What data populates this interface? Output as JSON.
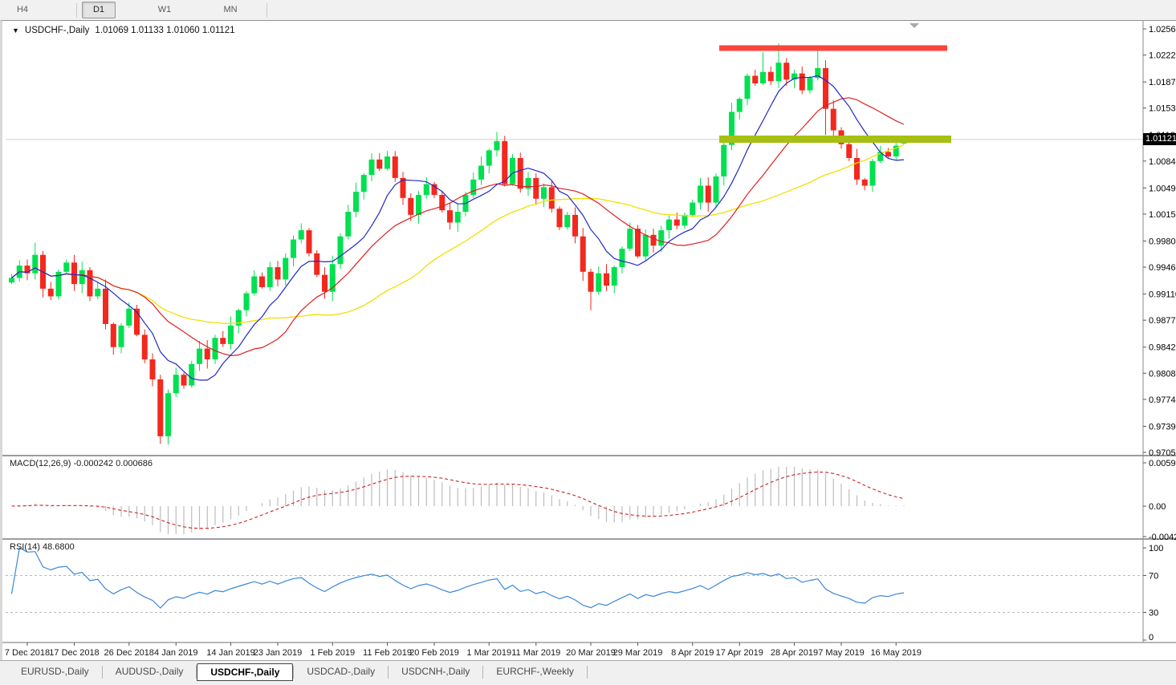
{
  "toolbar": {
    "timeframes": [
      {
        "label": "H4",
        "active": false
      },
      {
        "label": "D1",
        "active": true
      },
      {
        "label": "W1",
        "active": false
      },
      {
        "label": "MN",
        "active": false
      }
    ]
  },
  "chart": {
    "title": {
      "dropdown_icon": "▼",
      "symbol": "USDCHF-,Daily",
      "ohlc": "1.01069 1.01133 1.01060 1.01121"
    },
    "scroll_marker_icon": "▼",
    "price_axis": {
      "labels": [
        "1.02560",
        "1.02220",
        "1.01870",
        "1.01530",
        "1.01180",
        "1.00840",
        "1.00490",
        "1.00150",
        "0.99800",
        "0.99460",
        "0.99110",
        "0.98770",
        "0.98420",
        "0.98080",
        "0.97740",
        "0.97390",
        "0.97050"
      ],
      "current_price": "1.01121"
    },
    "date_axis": {
      "labels": [
        "7 Dec 2018",
        "17 Dec 2018",
        "26 Dec 2018",
        "4 Jan 2019",
        "14 Jan 2019",
        "23 Jan 2019",
        "1 Feb 2019",
        "11 Feb 2019",
        "20 Feb 2019",
        "1 Mar 2019",
        "11 Mar 2019",
        "20 Mar 2019",
        "29 Mar 2019",
        "8 Apr 2019",
        "17 Apr 2019",
        "28 Apr 2019",
        "7 May 2019",
        "16 May 2019"
      ],
      "tick_candle_indices": [
        2,
        8,
        15,
        21,
        28,
        34,
        41,
        48,
        54,
        61,
        67,
        74,
        80,
        87,
        93,
        100,
        106,
        113
      ]
    },
    "macd_panel": {
      "label": "MACD(12,26,9) -0.000242 0.000686",
      "axis_labels": [
        {
          "text": "0.00597",
          "value": 0.00597
        },
        {
          "text": "0.00",
          "value": 0
        },
        {
          "text": "-0.004243",
          "value": -0.004243
        }
      ]
    },
    "rsi_panel": {
      "label": "RSI(14) 48.6800",
      "axis_labels": [
        {
          "text": "100",
          "value": 100
        },
        {
          "text": "70",
          "value": 70
        },
        {
          "text": "30",
          "value": 30
        },
        {
          "text": "0",
          "value": 0
        }
      ],
      "levels": [
        70,
        30
      ]
    }
  },
  "tabs": [
    {
      "label": "EURUSD-,Daily",
      "active": false
    },
    {
      "label": "AUDUSD-,Daily",
      "active": false
    },
    {
      "label": "USDCHF-,Daily",
      "active": true
    },
    {
      "label": "USDCAD-,Daily",
      "active": false
    },
    {
      "label": "USDCNH-,Daily",
      "active": false
    },
    {
      "label": "EURCHF-,Weekly",
      "active": false
    }
  ],
  "colors": {
    "bull": "#00e050",
    "bear": "#f3281e",
    "ma_fast": "#2029c5",
    "ma_mid": "#dd2020",
    "ma_slow": "#f0e000",
    "macd_hist": "#bcbcbc",
    "macd_signal": "#cc2222",
    "rsi_line": "#3b87d9",
    "level_dash": "#b8b8b8",
    "resistance_bar": "#fa453c",
    "support_bar": "#a6bf12",
    "price_line": "#cfcfcf",
    "axis_text": "#000000",
    "divider": "#999da3",
    "marker": "#a9a9a9"
  },
  "chart_data": {
    "type": "candlestick+indicators",
    "symbol": "USDCHF",
    "timeframe": "Daily",
    "ylim": [
      0.9705,
      1.0256
    ],
    "first_open": 0.9926,
    "closes": [
      0.9932,
      0.9948,
      0.9938,
      0.9962,
      0.9918,
      0.9908,
      0.994,
      0.9952,
      0.9924,
      0.9942,
      0.9908,
      0.9918,
      0.9872,
      0.9842,
      0.987,
      0.9892,
      0.9858,
      0.9826,
      0.98,
      0.9726,
      0.9782,
      0.9806,
      0.9792,
      0.982,
      0.984,
      0.9826,
      0.9854,
      0.9846,
      0.987,
      0.989,
      0.9912,
      0.9934,
      0.992,
      0.9946,
      0.993,
      0.9958,
      0.9982,
      0.9994,
      0.9964,
      0.9936,
      0.9914,
      0.995,
      0.9986,
      1.0018,
      1.0044,
      1.0066,
      1.0086,
      1.0074,
      1.009,
      1.0062,
      1.0036,
      1.0014,
      1.004,
      1.0054,
      1.004,
      1.002,
      1.0004,
      1.0018,
      1.004,
      1.006,
      1.0078,
      1.0098,
      1.011,
      1.0054,
      1.0088,
      1.0048,
      1.0062,
      1.0035,
      1.005,
      1.0022,
      0.9998,
      1.0014,
      0.9986,
      0.994,
      0.9914,
      0.9938,
      0.9922,
      0.9946,
      0.997,
      0.9996,
      0.996,
      0.9988,
      0.9974,
      0.9994,
      1.0008,
      1.0,
      1.0014,
      1.003,
      1.0052,
      1.003,
      1.0064,
      1.0105,
      1.0148,
      1.0165,
      1.0195,
      1.0185,
      1.02,
      1.0188,
      1.0212,
      1.019,
      1.0198,
      1.0176,
      1.0192,
      1.0205,
      1.0152,
      1.0124,
      1.0106,
      1.0088,
      1.006,
      1.0052,
      1.0084,
      1.0096,
      1.009,
      1.0104,
      1.01121
    ],
    "wick_pattern": [
      5,
      9,
      3,
      7,
      12,
      4,
      8,
      2,
      10,
      6,
      3,
      11,
      5,
      8,
      4,
      9
    ],
    "extremes": {
      "3": {
        "high": 0.9978
      },
      "19": {
        "high": 0.9806,
        "low": 0.9716
      },
      "46": {
        "high": 1.0094
      },
      "48": {
        "high": 1.0097
      },
      "62": {
        "high": 1.0122
      },
      "63": {
        "high": 1.0117
      },
      "74": {
        "low": 0.989
      },
      "91": {
        "low": 1.0052
      },
      "96": {
        "high": 1.0226
      },
      "98": {
        "high": 1.0237
      },
      "103": {
        "high": 1.0229
      },
      "104": {
        "low": 1.0118
      },
      "109": {
        "low": 1.0046
      }
    },
    "last_ohlc": {
      "open": 1.01069,
      "high": 1.01133,
      "low": 1.0106,
      "close": 1.01121
    },
    "moving_averages": {
      "fast_period": 8,
      "mid_period": 17,
      "slow_period": 34
    },
    "macd": {
      "fast": 12,
      "slow": 26,
      "signal": 9,
      "current_macd": -0.000242,
      "current_signal": 0.000686
    },
    "rsi": {
      "period": 14,
      "current": 48.68,
      "levels": [
        70,
        30
      ]
    },
    "hlines": [
      {
        "name": "resistance",
        "price": 1.0231,
        "thickness_px": 7
      },
      {
        "name": "support",
        "price": 1.01125,
        "thickness_px": 9
      }
    ],
    "current_price": 1.01121
  }
}
